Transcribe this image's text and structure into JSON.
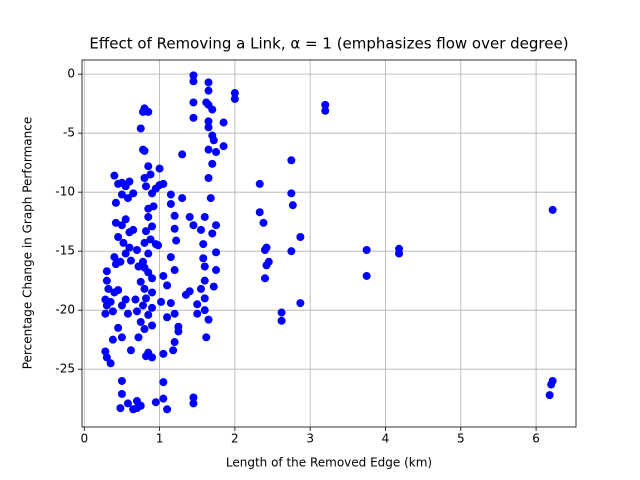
{
  "chart_data": {
    "type": "scatter",
    "title": "Effect of Removing a Link, α = 1 (emphasizes flow over degree)",
    "x_label": "Length of the Removed Edge (km)",
    "y_label": "Percentage Change in Graph Performance",
    "color": "#0000ff",
    "grid": true,
    "xlim": [
      -0.03,
      6.53
    ],
    "ylim": [
      -29.9,
      1.2
    ],
    "xticks": [
      0,
      1,
      2,
      3,
      4,
      5,
      6
    ],
    "yticks": [
      0,
      -5,
      -10,
      -15,
      -20,
      -25
    ],
    "x": [
      6.22,
      6.22,
      6.2,
      6.18,
      4.18,
      4.18,
      3.75,
      3.75,
      3.2,
      3.2,
      2.75,
      2.75,
      2.77,
      2.87,
      2.75,
      2.87,
      2.62,
      2.62,
      2.33,
      2.33,
      2.38,
      2.4,
      2.42,
      2.42,
      2.45,
      2.4,
      2.0,
      2.0,
      1.85,
      1.85,
      1.45,
      1.45,
      1.45,
      1.45,
      1.65,
      1.65,
      1.62,
      1.65,
      1.7,
      1.65,
      1.65,
      1.7,
      1.72,
      1.75,
      1.65,
      1.7,
      1.65,
      1.68,
      1.6,
      1.75,
      1.7,
      1.75,
      1.75,
      1.72,
      1.55,
      1.58,
      1.58,
      1.6,
      1.6,
      1.55,
      1.6,
      1.6,
      1.65,
      1.62,
      1.5,
      1.5,
      1.45,
      1.45,
      1.3,
      1.4,
      1.45,
      1.4,
      1.35,
      1.0,
      1.0,
      1.05,
      1.15,
      1.15,
      1.3,
      1.2,
      1.2,
      1.22,
      1.15,
      1.2,
      1.1,
      1.15,
      1.2,
      1.25,
      1.25,
      1.2,
      1.18,
      1.05,
      1.05,
      1.05,
      1.1,
      0.95,
      0.95,
      0.98,
      1.05,
      1.02,
      1.1,
      0.8,
      0.85,
      0.78,
      0.75,
      0.78,
      0.8,
      0.85,
      0.8,
      0.88,
      0.82,
      0.9,
      0.95,
      0.85,
      0.92,
      0.85,
      0.9,
      0.82,
      0.88,
      0.8,
      0.85,
      0.78,
      0.8,
      0.85,
      0.9,
      0.75,
      0.8,
      0.9,
      0.82,
      0.78,
      0.9,
      0.85,
      0.75,
      0.8,
      0.9,
      0.85,
      0.82,
      0.9,
      0.7,
      0.7,
      0.65,
      0.75,
      0.65,
      0.65,
      0.7,
      0.72,
      0.68,
      0.7,
      0.72,
      0.4,
      0.45,
      0.5,
      0.55,
      0.6,
      0.42,
      0.5,
      0.58,
      0.42,
      0.5,
      0.55,
      0.6,
      0.45,
      0.52,
      0.6,
      0.4,
      0.48,
      0.55,
      0.62,
      0.3,
      0.3,
      0.32,
      0.28,
      0.3,
      0.28,
      0.35,
      0.4,
      0.45,
      0.38,
      0.5,
      0.55,
      0.58,
      0.45,
      0.5,
      0.38,
      0.28,
      0.3,
      0.35,
      0.5,
      0.5,
      0.48,
      0.58,
      0.62,
      0.42
    ],
    "values": [
      -11.5,
      -26,
      -26.3,
      -27.2,
      -14.8,
      -15.2,
      -14.9,
      -17.1,
      -2.6,
      -3.1,
      -7.3,
      -10.1,
      -11.1,
      -13.8,
      -15,
      -19.4,
      -20.2,
      -20.9,
      -9.3,
      -11.7,
      -12.6,
      -14.9,
      -14.7,
      -16.2,
      -15.9,
      -17.3,
      -1.6,
      -2.1,
      -4.1,
      -6.1,
      -0.1,
      -0.6,
      -2.4,
      -3.7,
      -0.7,
      -1.4,
      -2.4,
      -2.6,
      -3,
      -4,
      -4.5,
      -5.2,
      -5.6,
      -6.6,
      -6.4,
      -7.6,
      -8.8,
      -10.5,
      -12.1,
      -12.8,
      -13.5,
      -15.1,
      -16.6,
      -18,
      -13.2,
      -14.4,
      -15.6,
      -16.3,
      -17.5,
      -18.2,
      -19,
      -20,
      -20.8,
      -22.3,
      -19.5,
      -20.3,
      -27.4,
      -27.9,
      -6.8,
      -12.1,
      -12.8,
      -18.4,
      -18.7,
      -8,
      -9.4,
      -9.3,
      -10.2,
      -11,
      -10.5,
      -12,
      -13.1,
      -14.1,
      -15.5,
      -16.6,
      -17.9,
      -19.4,
      -20.3,
      -21.4,
      -21.8,
      -22.7,
      -23.4,
      -23.7,
      -26.1,
      -27.5,
      -28.4,
      -27.8,
      -14.4,
      -14.5,
      -17.1,
      -19.3,
      -20.6,
      -2.9,
      -3.2,
      -3.2,
      -4.6,
      -6.4,
      -6.5,
      -7.8,
      -8.8,
      -8.5,
      -9.5,
      -10.1,
      -9.7,
      -11.4,
      -11.2,
      -12.1,
      -12.9,
      -13.3,
      -14,
      -14.3,
      -15.2,
      -15.9,
      -16.4,
      -16.8,
      -17.3,
      -17.6,
      -18.2,
      -18.5,
      -19,
      -19.6,
      -19.8,
      -20.4,
      -21,
      -21.6,
      -21.3,
      -23.6,
      -23.9,
      -24,
      -27.7,
      -28.3,
      -28.4,
      -28.1,
      -10.1,
      -13.2,
      -14.9,
      -16.3,
      -19.1,
      -20.1,
      -22.3,
      -8.6,
      -9.3,
      -9.2,
      -9.5,
      -9.1,
      -10.9,
      -10.2,
      -10.5,
      -12.6,
      -12.8,
      -12.3,
      -13.4,
      -13.8,
      -14.3,
      -14.7,
      -15.5,
      -15.9,
      -15.2,
      -15.8,
      -16.7,
      -17.5,
      -18.2,
      -19.1,
      -19.6,
      -20.3,
      -19.3,
      -18.5,
      -18.3,
      -20.1,
      -19.6,
      -19.1,
      -20.3,
      -21.5,
      -22.3,
      -22.5,
      -23.5,
      -24,
      -24.5,
      -26,
      -27.1,
      -28.3,
      -27.9,
      -23.4,
      -16.1
    ]
  }
}
